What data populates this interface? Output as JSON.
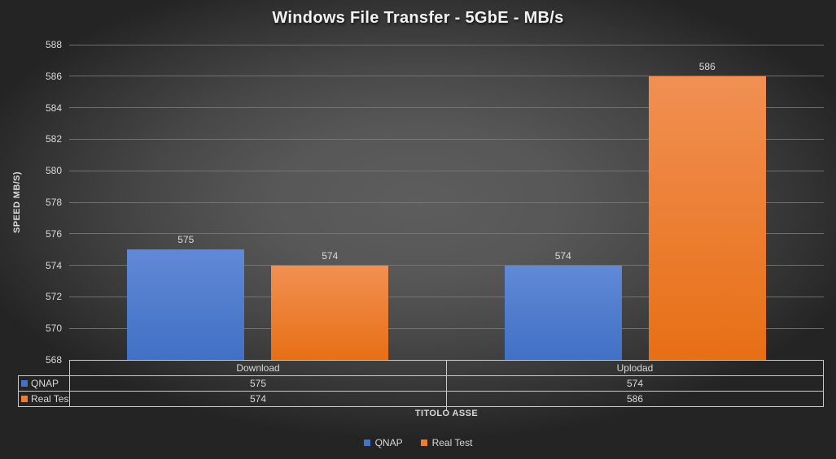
{
  "chart_data": {
    "type": "bar",
    "title": "Windows File Transfer - 5GbE - MB/s",
    "categories": [
      "Download",
      "Uplodad"
    ],
    "series": [
      {
        "name": "QNAP",
        "values": [
          575,
          574
        ],
        "swatch": "#4472c4",
        "color_top": "#6189d6",
        "color_bottom": "#4170c5"
      },
      {
        "name": "Real Test",
        "values": [
          574,
          586
        ],
        "swatch": "#ed7d31",
        "color_top": "#f19053",
        "color_bottom": "#e76f15"
      }
    ],
    "ylabel": "SPEED MB/S)",
    "xlabel": "TITOLO ASSE",
    "ylim": [
      568,
      588
    ],
    "ytick_step": 2,
    "yticks": [
      568,
      570,
      572,
      574,
      576,
      578,
      580,
      582,
      584,
      586,
      588
    ],
    "grid": true,
    "show_data_labels": true,
    "show_data_table": true,
    "legend_position": "bottom"
  },
  "theme": {
    "text_color": "#d9d9d9",
    "title_color": "#f2f2f2",
    "gridline_color": "#7a7a7a",
    "table_border_color": "#c9c9c9",
    "background_center": "#5d5d5d",
    "background_edge": "#242424"
  }
}
